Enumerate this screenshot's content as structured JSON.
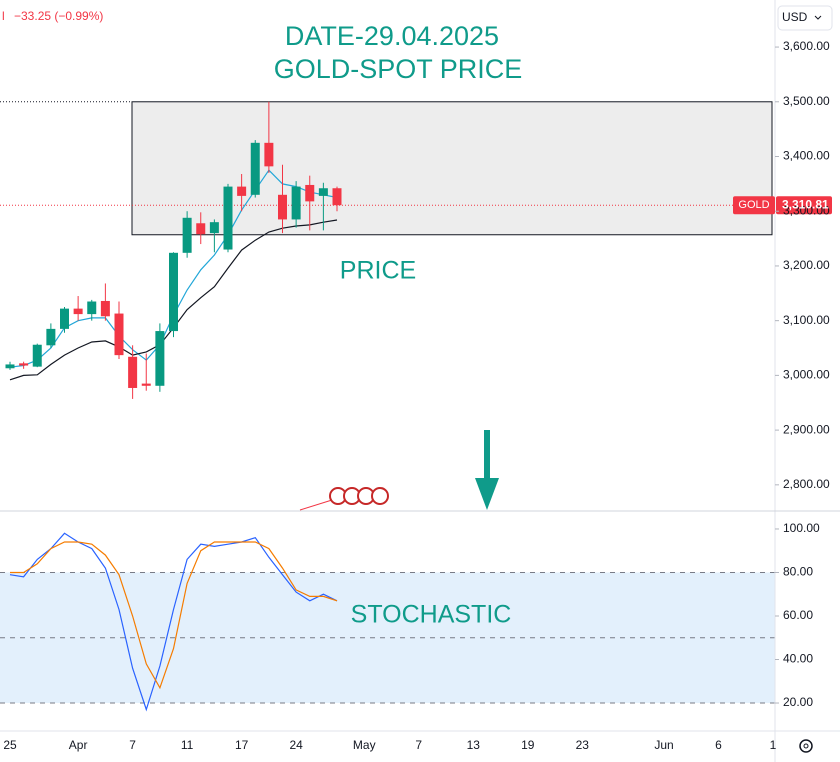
{
  "header": {
    "change": "−33.25 (−0.99%)",
    "currency": "USD"
  },
  "chart_data": [
    {
      "type": "candlestick",
      "title": "DATE-29.04.2025",
      "subtitle": "GOLD-SPOT PRICE",
      "annotation": "PRICE",
      "symbol": "GOLD",
      "last_price": 3310.81,
      "last_price_label": "3,310.81",
      "categories": [
        "25",
        null,
        null,
        null,
        null,
        "Apr",
        null,
        null,
        null,
        "7",
        null,
        null,
        null,
        "11",
        null,
        null,
        null,
        "17",
        null,
        null,
        null,
        "24",
        null,
        null,
        null,
        null,
        "May",
        null,
        null,
        null,
        "7",
        null,
        null,
        null,
        "13",
        null,
        null,
        null,
        "19",
        null,
        null,
        null,
        "23",
        null,
        null,
        null,
        null,
        null,
        "Jun",
        null,
        null,
        null,
        "6",
        null,
        null,
        null,
        "1"
      ],
      "open": [
        3013,
        3022,
        3016,
        3055,
        3085,
        3122,
        3112,
        3136,
        3113,
        3034,
        2985,
        2981,
        3081,
        3224,
        3278,
        3260,
        3230,
        3345,
        3330,
        3425,
        3330,
        3285,
        3348,
        3328,
        3342,
        null,
        null,
        null,
        null,
        null,
        null,
        null,
        null,
        null,
        null,
        null,
        null,
        null,
        null,
        null,
        null,
        null,
        null,
        null,
        null,
        null,
        null,
        null,
        null,
        null,
        null,
        null,
        null,
        null,
        null,
        null,
        null
      ],
      "high": [
        3025,
        3025,
        3058,
        3095,
        3125,
        3145,
        3138,
        3168,
        3135,
        3055,
        3040,
        3095,
        3225,
        3300,
        3298,
        3285,
        3350,
        3368,
        3430,
        3500,
        3385,
        3355,
        3365,
        3352,
        3345,
        null,
        null,
        null,
        null,
        null,
        null,
        null,
        null,
        null,
        null,
        null,
        null,
        null,
        null,
        null,
        null,
        null,
        null,
        null,
        null,
        null,
        null,
        null,
        null,
        null,
        null,
        null,
        null,
        null,
        null,
        null,
        null
      ],
      "low": [
        3010,
        3012,
        3015,
        3050,
        3078,
        3100,
        3100,
        3100,
        3030,
        2957,
        2972,
        2970,
        3070,
        3215,
        3240,
        3225,
        3225,
        3300,
        3325,
        3370,
        3260,
        3270,
        3265,
        3265,
        3300,
        null,
        null,
        null,
        null,
        null,
        null,
        null,
        null,
        null,
        null,
        null,
        null,
        null,
        null,
        null,
        null,
        null,
        null,
        null,
        null,
        null,
        null,
        null,
        null,
        null,
        null,
        null,
        null,
        null,
        null,
        null,
        null
      ],
      "close": [
        3020,
        3018,
        3056,
        3085,
        3122,
        3112,
        3135,
        3108,
        3037,
        2977,
        2981,
        3081,
        3224,
        3288,
        3258,
        3280,
        3345,
        3328,
        3425,
        3382,
        3285,
        3345,
        3318,
        3342,
        3311,
        null,
        null,
        null,
        null,
        null,
        null,
        null,
        null,
        null,
        null,
        null,
        null,
        null,
        null,
        null,
        null,
        null,
        null,
        null,
        null,
        null,
        null,
        null,
        null,
        null,
        null,
        null,
        null,
        null,
        null,
        null,
        null
      ],
      "up_color": "#089981",
      "down_color": "#f23645",
      "series": [
        {
          "color": "#22a7d8",
          "values": [
            3015,
            3018,
            3028,
            3050,
            3087,
            3100,
            3105,
            3105,
            3072,
            3047,
            3028,
            3056,
            3110,
            3156,
            3193,
            3220,
            3257,
            3302,
            3339,
            3375,
            3350,
            3345,
            3335,
            3330,
            3325,
            null,
            null,
            null,
            null,
            null,
            null,
            null,
            null,
            null,
            null,
            null,
            null,
            null,
            null,
            null,
            null,
            null,
            null,
            null,
            null,
            null,
            null,
            null,
            null,
            null,
            null,
            null,
            null,
            null,
            null,
            null,
            null
          ]
        },
        {
          "color": "#131722",
          "values": [
            2992,
            3000,
            3001,
            3020,
            3037,
            3050,
            3061,
            3063,
            3052,
            3037,
            3043,
            3056,
            3087,
            3120,
            3142,
            3162,
            3196,
            3229,
            3247,
            3262,
            3269,
            3273,
            3275,
            3280,
            3284,
            null,
            null,
            null,
            null,
            null,
            null,
            null,
            null,
            null,
            null,
            null,
            null,
            null,
            null,
            null,
            null,
            null,
            null,
            null,
            null,
            null,
            null,
            null,
            null,
            null,
            null,
            null,
            null,
            null,
            null,
            null,
            null
          ]
        }
      ],
      "zone": [
        3257,
        3500
      ],
      "ylim": [
        2754,
        3686
      ],
      "yticks": [
        {
          "value": 2800,
          "label": "2,800.00"
        },
        {
          "value": 2900,
          "label": "2,900.00"
        },
        {
          "value": 3000,
          "label": "3,000.00"
        },
        {
          "value": 3100,
          "label": "3,100.00"
        },
        {
          "value": 3200,
          "label": "3,200.00"
        },
        {
          "value": 3300,
          "label": "3,300.00"
        },
        {
          "value": 3400,
          "label": "3,400.00"
        },
        {
          "value": 3500,
          "label": "3,500.00"
        },
        {
          "value": 3600,
          "label": "3,600.00"
        }
      ]
    },
    {
      "type": "line",
      "annotation": "STOCHASTIC",
      "series": [
        {
          "color": "#2962ff",
          "values": [
            79,
            78,
            86,
            91,
            98,
            94,
            91,
            82,
            63,
            36,
            17,
            37,
            63,
            86,
            93,
            92,
            93,
            94,
            96,
            87,
            79,
            71,
            67,
            70,
            67,
            null,
            null,
            null,
            null,
            null,
            null,
            null,
            null,
            null,
            null,
            null,
            null,
            null,
            null,
            null,
            null,
            null,
            null,
            null,
            null,
            null,
            null,
            null,
            null,
            null,
            null,
            null,
            null,
            null,
            null,
            null,
            null
          ]
        },
        {
          "color": "#f57c00",
          "values": [
            80,
            80,
            84,
            91,
            94,
            94,
            93,
            88,
            79,
            60,
            38,
            27,
            45,
            75,
            90,
            94,
            94,
            94,
            94,
            91,
            82,
            72,
            69,
            69,
            67,
            null,
            null,
            null,
            null,
            null,
            null,
            null,
            null,
            null,
            null,
            null,
            null,
            null,
            null,
            null,
            null,
            null,
            null,
            null,
            null,
            null,
            null,
            null,
            null,
            null,
            null,
            null,
            null,
            null,
            null,
            null,
            null
          ]
        }
      ],
      "levels": [
        20,
        50,
        80
      ],
      "band_color": "#e3f0fc",
      "ylim": [
        7.6,
        107.8
      ],
      "yticks": [
        {
          "value": 20,
          "label": "20.00"
        },
        {
          "value": 40,
          "label": "40.00"
        },
        {
          "value": 60,
          "label": "60.00"
        },
        {
          "value": 80,
          "label": "80.00"
        },
        {
          "value": 100,
          "label": "100.00"
        }
      ]
    }
  ]
}
